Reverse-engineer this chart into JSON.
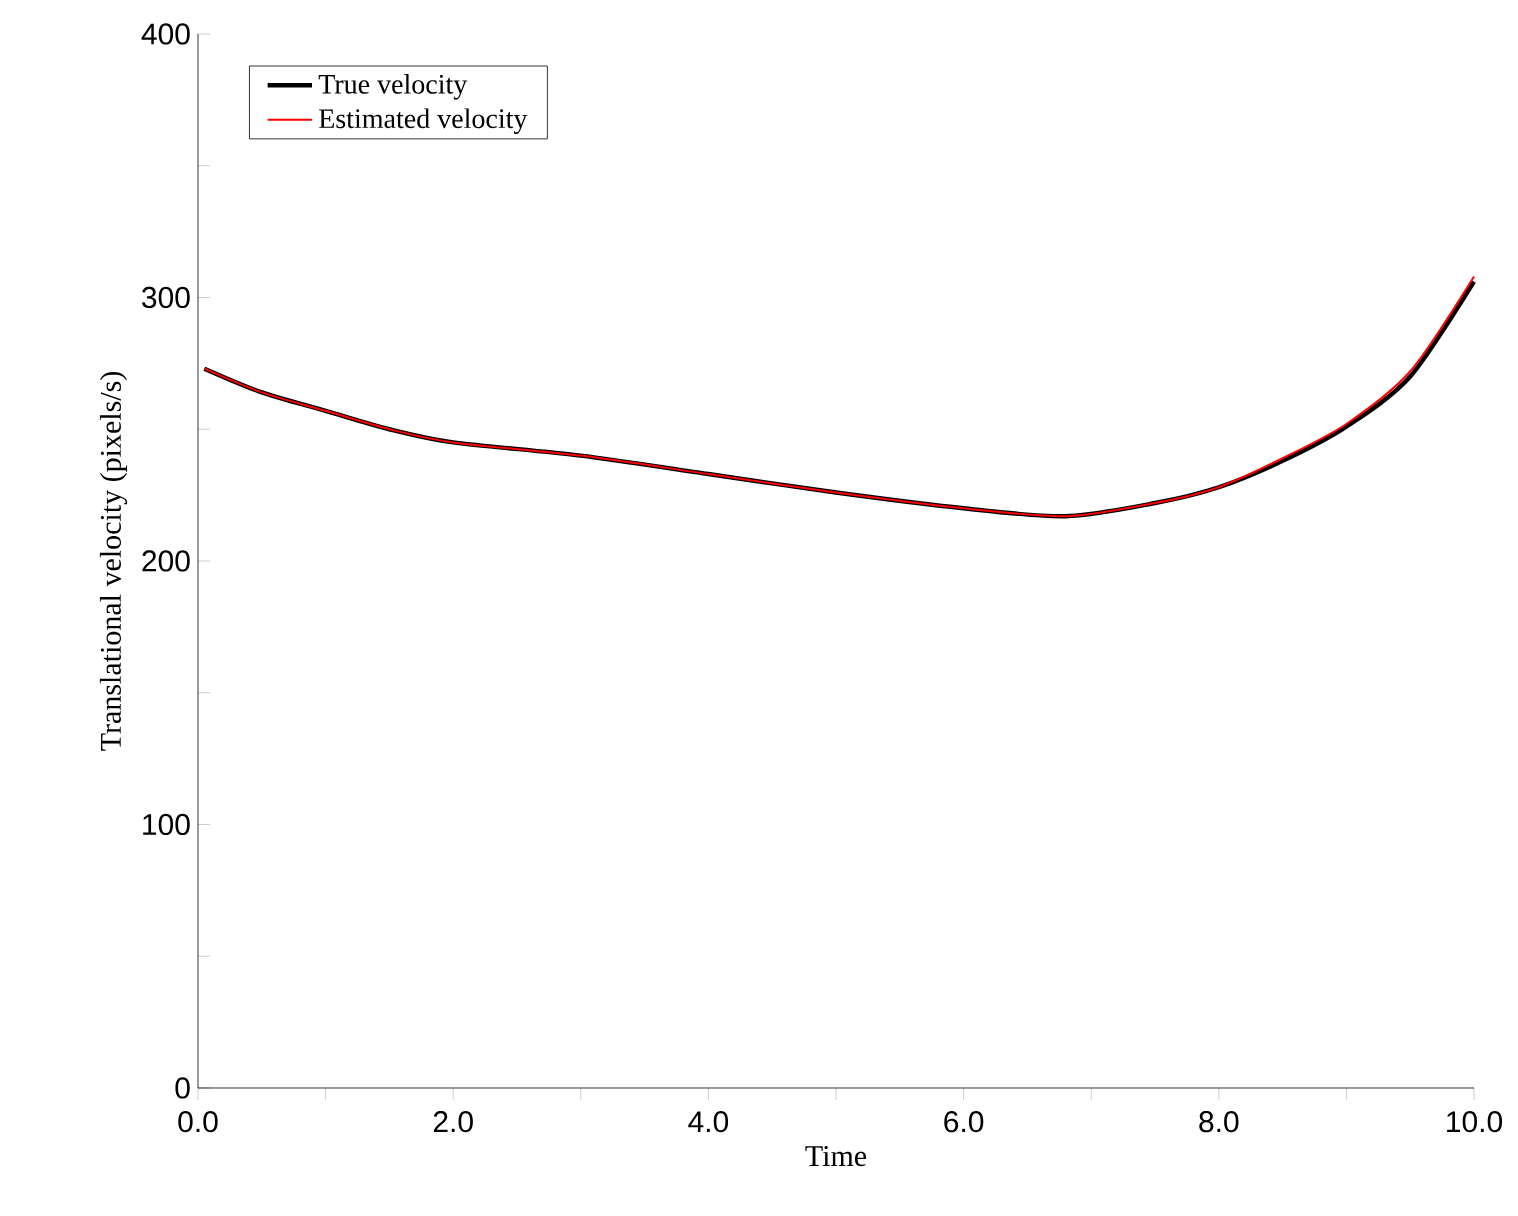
{
  "chart_data": {
    "type": "line",
    "xlabel": "Time",
    "ylabel": "Translational velocity (pixels/s)",
    "xlim": [
      0,
      10
    ],
    "ylim": [
      0,
      400
    ],
    "xticks": [
      {
        "value": 0,
        "label": "0.0"
      },
      {
        "value": 1,
        "label": null
      },
      {
        "value": 2,
        "label": "2.0"
      },
      {
        "value": 3,
        "label": null
      },
      {
        "value": 4,
        "label": "4.0"
      },
      {
        "value": 5,
        "label": null
      },
      {
        "value": 6,
        "label": "6.0"
      },
      {
        "value": 7,
        "label": null
      },
      {
        "value": 8,
        "label": "8.0"
      },
      {
        "value": 9,
        "label": null
      },
      {
        "value": 10,
        "label": "10.0"
      }
    ],
    "yticks": [
      0,
      {
        "value": 50,
        "label": null
      },
      100,
      {
        "value": 150,
        "label": null
      },
      200,
      {
        "value": 250,
        "label": null
      },
      300,
      {
        "value": 350,
        "label": null
      },
      400
    ],
    "x": [
      0.05,
      0.5,
      1,
      1.5,
      2,
      3,
      4,
      5,
      6,
      6.8,
      7.5,
      8,
      8.5,
      9,
      9.5,
      10
    ],
    "series": [
      {
        "name": "True velocity",
        "color": "#000000",
        "values": [
          273,
          264,
          257,
          250,
          245,
          240,
          233,
          226,
          220,
          217,
          222,
          228,
          238,
          251,
          270,
          306
        ]
      },
      {
        "name": "Estimated velocity",
        "color": "#ff0000",
        "values": [
          273,
          264,
          257,
          250,
          245,
          240,
          233,
          226,
          220,
          217,
          222,
          228,
          239,
          252,
          272,
          308
        ]
      }
    ],
    "legend": "top left",
    "grid": false,
    "marker": "none",
    "line_style": "solid"
  }
}
